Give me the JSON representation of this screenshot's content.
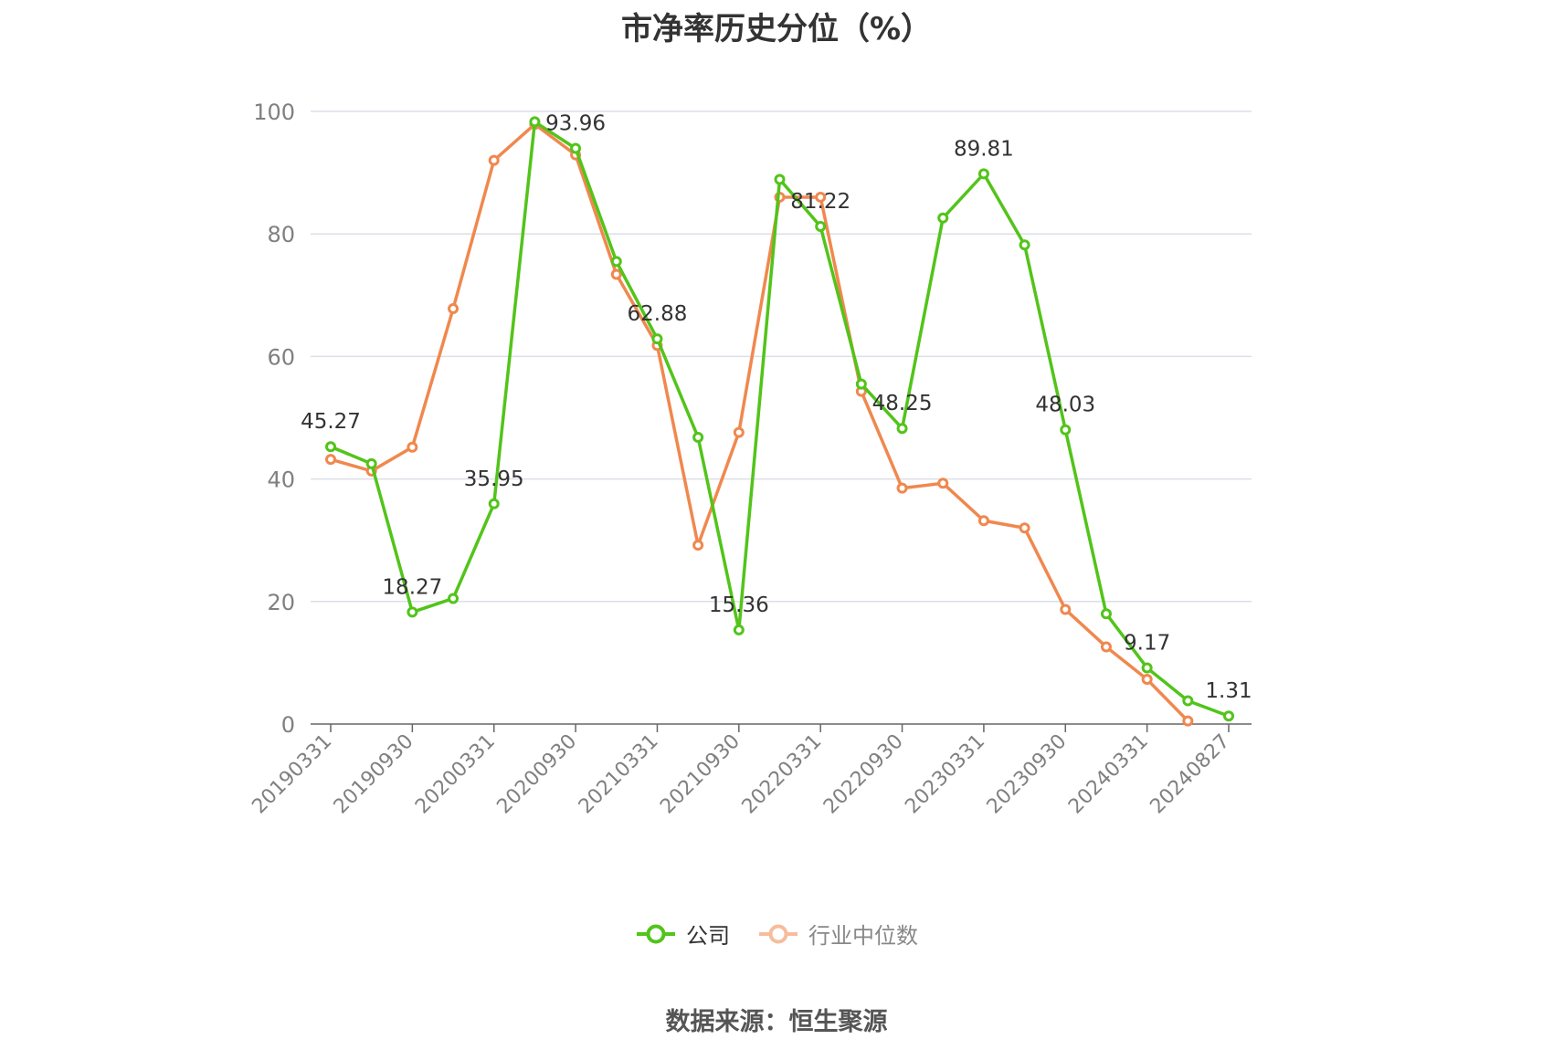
{
  "title": "市净率历史分位（%）",
  "source": "数据来源：恒生聚源",
  "colors": {
    "company": "#52c41a",
    "industry": "#f0884e",
    "grid": "#dcdfe8",
    "axis": "#999999",
    "tick_text": "#808080",
    "label_text": "#333333"
  },
  "chart_data": {
    "type": "line",
    "title": "市净率历史分位（%）",
    "xlabel": "",
    "ylabel": "",
    "ylim": [
      0,
      100
    ],
    "y_ticks": [
      0,
      20,
      40,
      60,
      80,
      100
    ],
    "grid": true,
    "legend_position": "bottom",
    "x": [
      "20190331",
      "20190630",
      "20190930",
      "20191231",
      "20200331",
      "20200630",
      "20200930",
      "20201231",
      "20210331",
      "20210630",
      "20210930",
      "20211231",
      "20220331",
      "20220630",
      "20220930",
      "20221231",
      "20230331",
      "20230630",
      "20230930",
      "20231231",
      "20240331",
      "20240630",
      "20240827"
    ],
    "x_tick_labels": [
      "20190331",
      "20190930",
      "20200331",
      "20200930",
      "20210331",
      "20210930",
      "20220331",
      "20220930",
      "20230331",
      "20230930",
      "20240331",
      "20240827"
    ],
    "series": [
      {
        "name": "公司",
        "key": "company",
        "values": [
          45.27,
          42.5,
          18.27,
          20.5,
          35.95,
          98.3,
          93.96,
          75.5,
          62.88,
          46.8,
          15.36,
          88.9,
          81.22,
          55.5,
          48.25,
          82.6,
          89.81,
          78.2,
          48.03,
          18.0,
          9.17,
          3.8,
          1.31
        ],
        "labels": {
          "0": "45.27",
          "2": "18.27",
          "4": "35.95",
          "6": "93.96",
          "8": "62.88",
          "10": "15.36",
          "12": "81.22",
          "14": "48.25",
          "16": "89.81",
          "18": "48.03",
          "20": "9.17",
          "22": "1.31"
        }
      },
      {
        "name": "行业中位数",
        "key": "industry",
        "values": [
          43.2,
          41.3,
          45.2,
          67.8,
          92.0,
          97.9,
          92.9,
          73.4,
          61.8,
          29.2,
          47.6,
          86.0,
          86.0,
          54.3,
          38.5,
          39.3,
          33.2,
          32.0,
          18.7,
          12.6,
          7.3,
          0.5,
          null
        ]
      }
    ]
  }
}
